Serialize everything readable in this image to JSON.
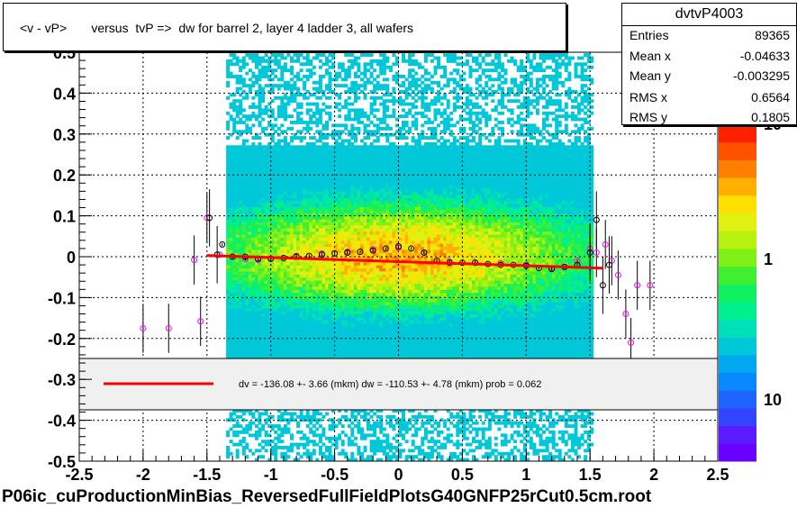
{
  "title": "<v - vP>       versus  tvP =>  dw for barrel 2, layer 4 ladder 3, all wafers",
  "footer": "P06ic_cuProductionMinBias_ReversedFullFieldPlotsG40GNFP25rCut0.5cm.root",
  "stats": {
    "name": "dvtvP4003",
    "rows": [
      {
        "label": "Entries",
        "value": "89365"
      },
      {
        "label": "Mean x",
        "value": "-0.04633"
      },
      {
        "label": "Mean y",
        "value": "-0.003295"
      },
      {
        "label": "RMS x",
        "value": "0.6564"
      },
      {
        "label": "RMS y",
        "value": "0.1805"
      }
    ]
  },
  "fit_legend": "dv = -136.08 +-  3.66 (mkm) dw = -110.53 +-  4.78 (mkm) prob = 0.062",
  "colors": {
    "fit_line": "#ff0000",
    "profile_a": "#000000",
    "profile_b": "#ff00ff"
  },
  "chart_data": {
    "type": "heatmap",
    "title": "<v - vP>       versus  tvP =>  dw for barrel 2, layer 4 ladder 3, all wafers",
    "xlim": [
      -2.5,
      2.5
    ],
    "ylim": [
      -0.5,
      0.5
    ],
    "x_ticks": [
      "-2.5",
      "-2",
      "-1.5",
      "-1",
      "-0.5",
      "0",
      "0.5",
      "1",
      "1.5",
      "2",
      "2.5"
    ],
    "y_ticks": [
      "-0.5",
      "-0.4",
      "-0.3",
      "-0.2",
      "-0.1",
      "0",
      "0.1",
      "0.2",
      "0.3",
      "0.4",
      "0.5"
    ],
    "z_scale": "log",
    "z_ticks": [
      "10",
      "1",
      "10"
    ],
    "grid": true,
    "density_x_range": [
      -1.35,
      1.5
    ],
    "fit_line": {
      "x": [
        -1.5,
        1.6
      ],
      "y": [
        0.003,
        -0.028
      ]
    },
    "profile_black": {
      "x": [
        -1.48,
        -1.42,
        -1.38,
        -1.3,
        -1.2,
        -1.1,
        -1.0,
        -0.9,
        -0.8,
        -0.7,
        -0.6,
        -0.5,
        -0.4,
        -0.3,
        -0.2,
        -0.1,
        0.0,
        0.1,
        0.2,
        0.3,
        0.4,
        0.5,
        0.6,
        0.7,
        0.8,
        0.9,
        1.0,
        1.1,
        1.2,
        1.3,
        1.4,
        1.5,
        1.55,
        1.6,
        1.65
      ],
      "y": [
        0.095,
        0.005,
        0.03,
        0.0,
        0.0,
        -0.005,
        -0.005,
        -0.003,
        0.0,
        0.002,
        0.005,
        0.008,
        0.01,
        0.012,
        0.015,
        0.02,
        0.025,
        0.02,
        0.01,
        -0.01,
        -0.015,
        -0.015,
        -0.015,
        -0.018,
        -0.02,
        -0.02,
        -0.022,
        -0.028,
        -0.03,
        -0.025,
        -0.02,
        0.01,
        0.09,
        -0.07,
        -0.02
      ]
    },
    "profile_magenta": {
      "x": [
        -2.0,
        -1.8,
        -1.6,
        -1.55,
        -1.5,
        -1.4,
        -1.3,
        -1.2,
        -1.1,
        -1.0,
        -0.8,
        -0.6,
        -0.4,
        -0.2,
        0.0,
        0.2,
        0.4,
        0.6,
        0.8,
        1.0,
        1.2,
        1.3,
        1.4,
        1.5,
        1.55,
        1.62,
        1.67,
        1.72,
        1.78,
        1.82,
        1.87,
        1.97
      ],
      "y": [
        -0.175,
        -0.175,
        -0.008,
        -0.158,
        0.095,
        0.005,
        0.0,
        -0.005,
        -0.008,
        -0.005,
        0.002,
        0.008,
        0.012,
        0.018,
        0.022,
        0.01,
        -0.012,
        -0.014,
        -0.016,
        -0.02,
        -0.028,
        -0.025,
        -0.01,
        0.02,
        0.01,
        0.03,
        -0.01,
        -0.045,
        -0.14,
        -0.21,
        -0.07,
        -0.07
      ]
    }
  }
}
